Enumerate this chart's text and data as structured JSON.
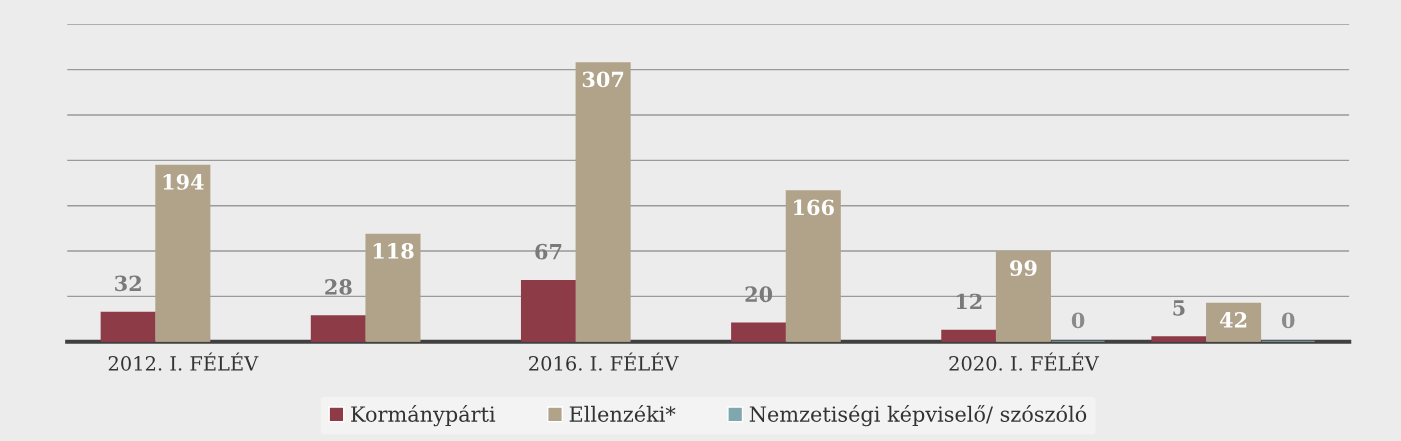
{
  "chart_data": {
    "type": "bar",
    "categories": [
      "2012. I. FÉLÉV",
      null,
      "2016. I. FÉLÉV",
      null,
      "2020. I. FÉLÉV",
      null
    ],
    "series": [
      {
        "name": "Kormánypárti",
        "color": "#8e3b48",
        "values": [
          32,
          28,
          67,
          20,
          12,
          5
        ]
      },
      {
        "name": "Ellenzéki*",
        "color": "#b1a38a",
        "values": [
          194,
          118,
          307,
          166,
          99,
          42
        ]
      },
      {
        "name": "Nemzetiségi képviselő/ szószóló",
        "color": "#7fa7ad",
        "values": [
          null,
          null,
          null,
          null,
          0,
          0
        ]
      }
    ],
    "ylim": [
      0,
      350
    ],
    "yticks": [
      {
        "value": 0,
        "label": null
      },
      {
        "value": 50,
        "label": null
      },
      {
        "value": 100,
        "label": null
      },
      {
        "value": 150,
        "label": null
      },
      {
        "value": 200,
        "label": null
      },
      {
        "value": 250,
        "label": null
      },
      {
        "value": 300,
        "label": null
      },
      {
        "value": 350,
        "label": null
      }
    ],
    "grid": "y",
    "legend": "bottom",
    "data_labels": true,
    "tick_labels": "x"
  }
}
